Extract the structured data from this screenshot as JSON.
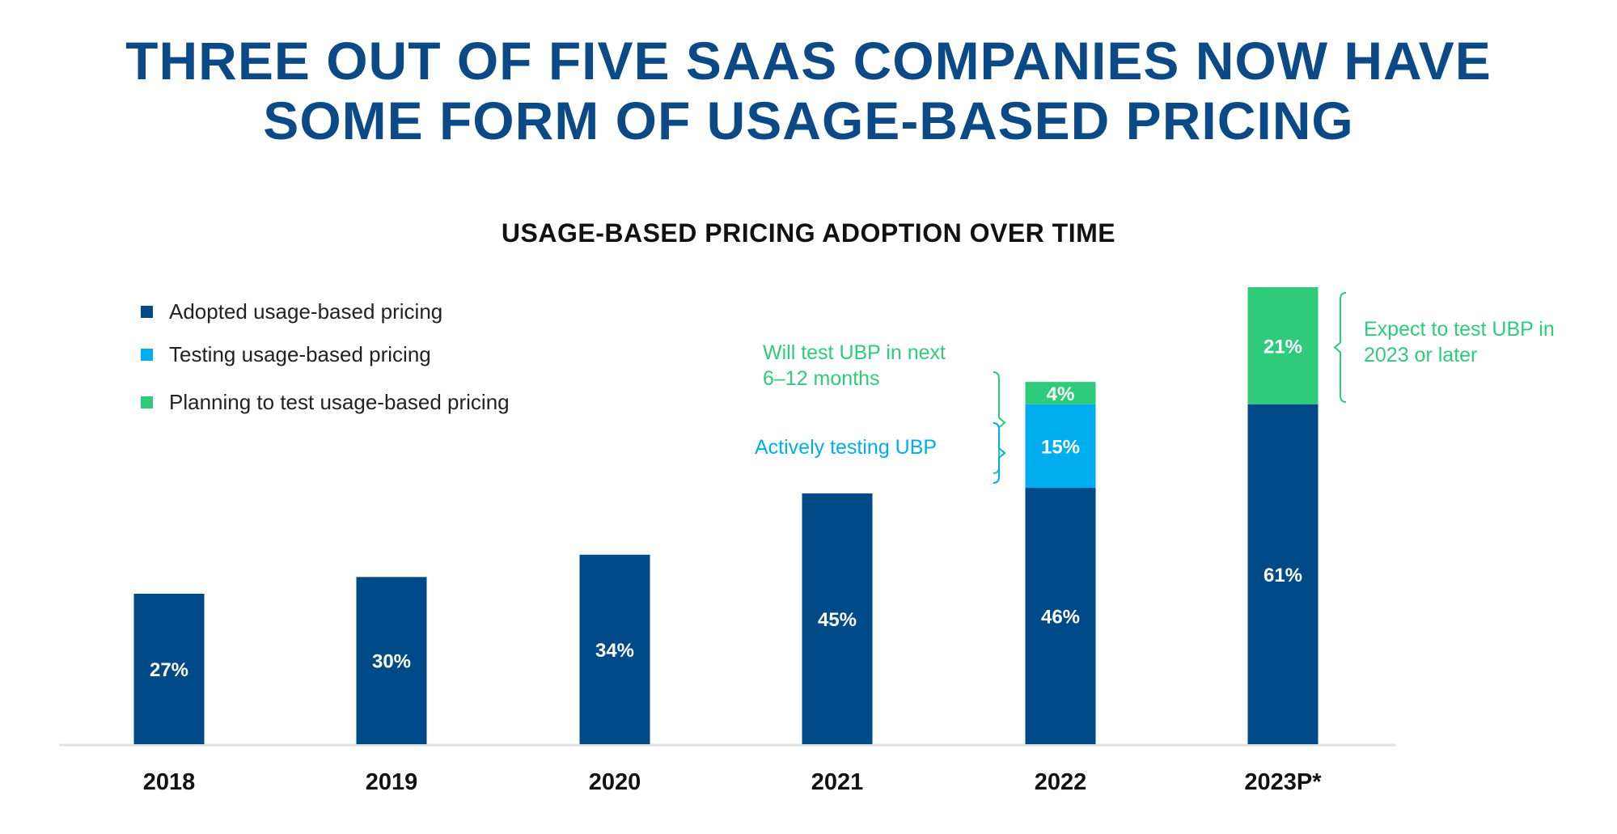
{
  "title": {
    "line1": "THREE OUT OF FIVE SAAS COMPANIES NOW HAVE",
    "line2": "SOME FORM OF USAGE-BASED PRICING"
  },
  "colors": {
    "adopted": "#004b87",
    "testing": "#00aeef",
    "planning": "#2ecc7a",
    "title": "#0b4a86"
  },
  "legend": [
    {
      "label": "Adopted usage-based pricing",
      "color": "#004b87"
    },
    {
      "label": "Testing usage-based pricing",
      "color": "#00aeef"
    },
    {
      "label": "Planning to test usage-based pricing",
      "color": "#2ecc7a"
    }
  ],
  "annotations": {
    "will_test_line1": "Will test UBP in next",
    "will_test_line2": "6–12 months",
    "actively_testing": "Actively testing UBP",
    "expect_line1": "Expect to test UBP in",
    "expect_line2": "2023 or later"
  },
  "chart_data": {
    "type": "bar",
    "stacked": true,
    "title": "USAGE-BASED PRICING ADOPTION OVER TIME",
    "categories": [
      "2018",
      "2019",
      "2020",
      "2021",
      "2022",
      "2023P*"
    ],
    "series": [
      {
        "name": "Adopted usage-based pricing",
        "values": [
          27,
          30,
          34,
          45,
          46,
          61
        ],
        "labels": [
          "27%",
          "30%",
          "34%",
          "45%",
          "46%",
          "61%"
        ]
      },
      {
        "name": "Testing usage-based pricing",
        "values": [
          0,
          0,
          0,
          0,
          15,
          0
        ],
        "labels": [
          "",
          "",
          "",
          "",
          "15%",
          ""
        ]
      },
      {
        "name": "Planning to test usage-based pricing",
        "values": [
          0,
          0,
          0,
          0,
          4,
          21
        ],
        "labels": [
          "",
          "",
          "",
          "",
          "4%",
          "21%"
        ]
      }
    ],
    "ylim": [
      0,
      82
    ],
    "grid": false,
    "legend_position": "top-left"
  }
}
